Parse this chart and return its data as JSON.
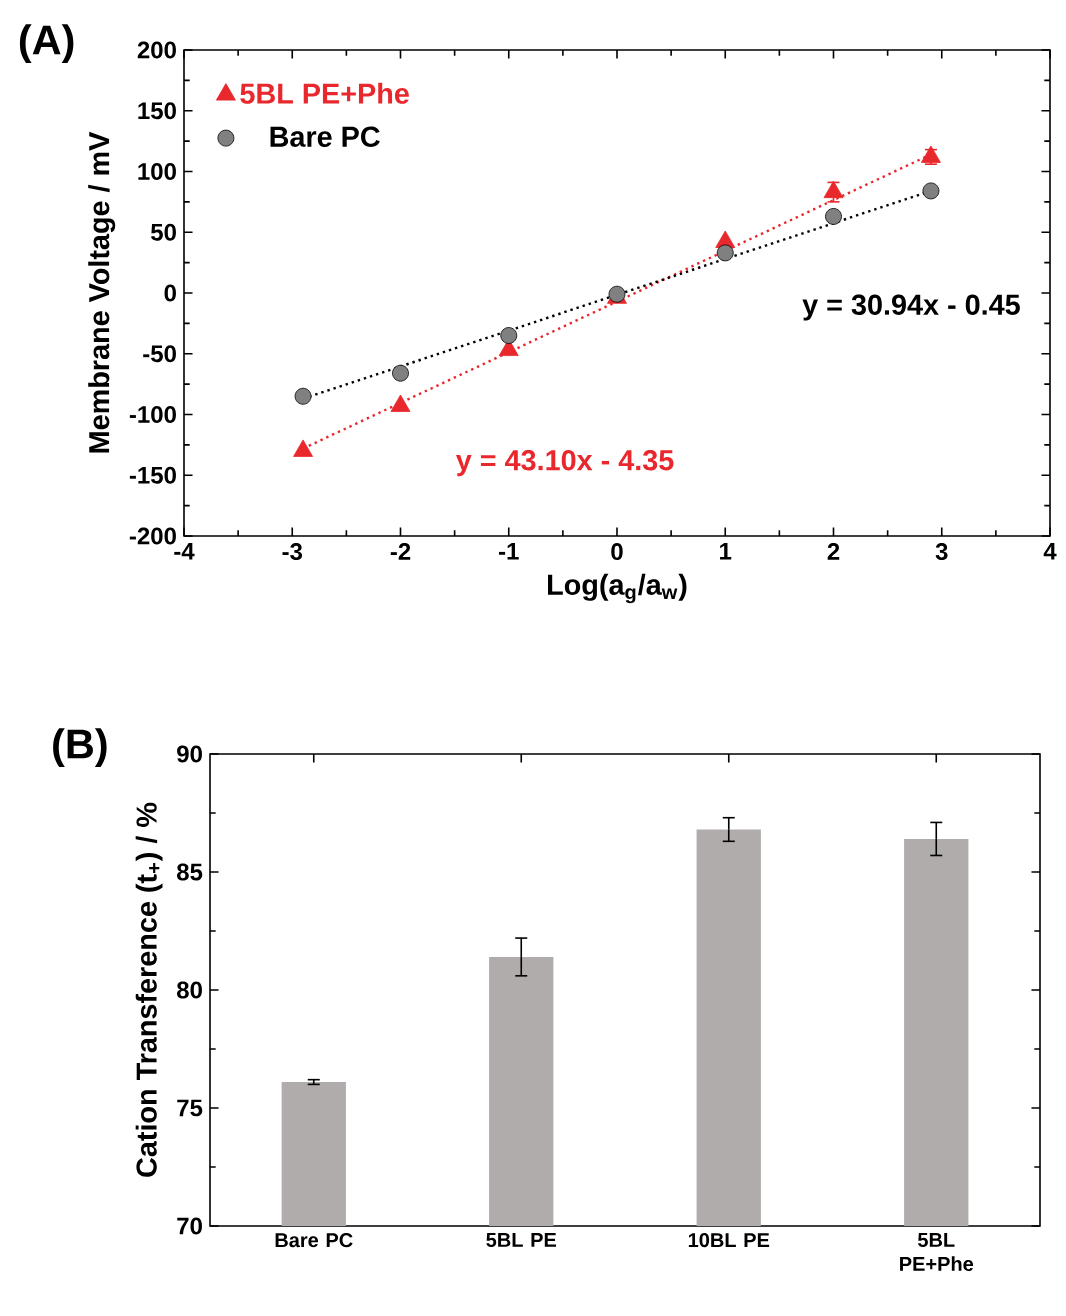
{
  "chart_data": [
    {
      "type": "scatter",
      "title": "(A)",
      "xlabel": "Log(a$_{g}$/a$_{w}$)",
      "ylabel": "Membrane Voltage / mV",
      "xlim": [
        -4,
        4
      ],
      "xticks": [
        -4,
        -3,
        -2,
        -1,
        0,
        1,
        2,
        3,
        4
      ],
      "ylim": [
        -200,
        200
      ],
      "yticks": [
        -200,
        -150,
        -100,
        -50,
        0,
        50,
        100,
        150,
        200
      ],
      "legend": "top left",
      "annotations": [
        "y = 43.10x - 4.35",
        "y = 30.94x - 0.45"
      ],
      "series": [
        {
          "name": "5BL PE+Phe",
          "color": "#e8282c",
          "marker": "triangle",
          "x": [
            -2.9,
            -2,
            -1,
            0,
            1,
            2,
            2.9
          ],
          "values": [
            -130,
            -93,
            -47,
            -4,
            42,
            83,
            112
          ],
          "errors": [
            null,
            null,
            null,
            null,
            null,
            8,
            6
          ]
        },
        {
          "name": "Bare PC",
          "color": "#808080",
          "marker": "circle",
          "x": [
            -2.9,
            -2,
            -1,
            0,
            1,
            2,
            2.9
          ],
          "values": [
            -85,
            -66,
            -35,
            -1,
            33,
            63,
            84
          ]
        },
        {
          "type": "line",
          "color": "#e8282c",
          "line_style": "dotted",
          "marker": "none",
          "x": [
            -2.9,
            2.9
          ],
          "values": [
            -128,
            114
          ]
        },
        {
          "type": "line",
          "color": "#000000",
          "line_style": "dotted",
          "marker": "none",
          "x": [
            -2.9,
            2.9
          ],
          "values": [
            -87,
            84
          ]
        }
      ]
    },
    {
      "type": "bar",
      "title": "(B)",
      "ylabel": "Cation Transference (t$_{+}$) / %",
      "categories": [
        "Bare PC",
        "5BL PE",
        "10BL PE",
        "5BL PE+Phe"
      ],
      "values": [
        76.1,
        81.4,
        86.8,
        86.4
      ],
      "errors": [
        0.1,
        0.8,
        0.5,
        0.7
      ],
      "color": "#b0acab",
      "ylim": [
        70,
        90
      ],
      "yticks": [
        70,
        75,
        80,
        85,
        90
      ]
    }
  ]
}
